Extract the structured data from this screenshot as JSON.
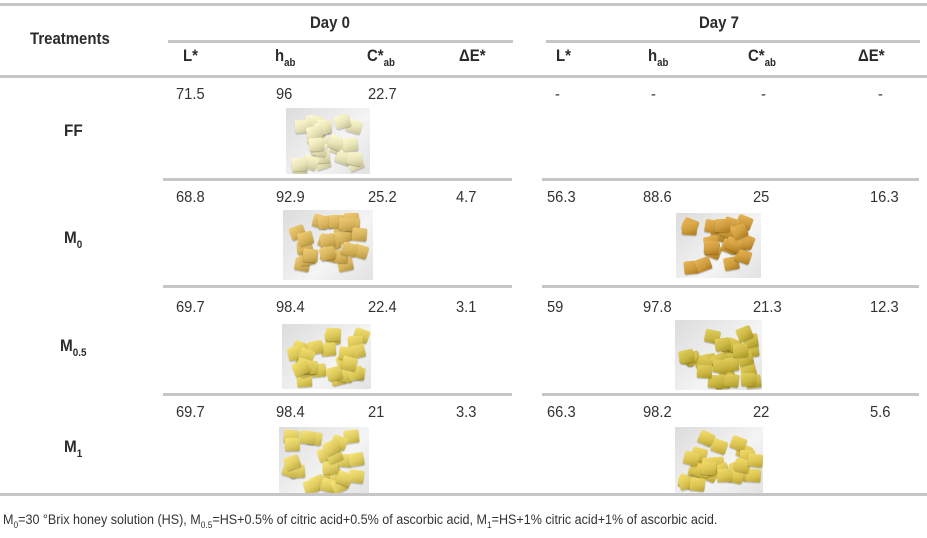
{
  "table": {
    "header": {
      "treatments": "Treatments",
      "groups": [
        {
          "label": "Day 0"
        },
        {
          "label": "Day 7"
        }
      ],
      "columns": {
        "L": {
          "base": "L*",
          "sub": ""
        },
        "h": {
          "base": "h",
          "sub": "ab"
        },
        "C": {
          "base": "C*",
          "sub": "ab"
        },
        "dE": {
          "base": "ΔE*",
          "sub": ""
        }
      }
    },
    "rows": [
      {
        "label": {
          "base": "FF",
          "sub": ""
        },
        "day0": {
          "L": "71.5",
          "h": "96",
          "C": "22.7",
          "dE": ""
        },
        "day7": {
          "L": "-",
          "h": "-",
          "C": "-",
          "dE": "-"
        },
        "photo_day0": {
          "description": "fresh-cut pale cubes",
          "color": "#e9e3b8"
        },
        "photo_day7": null
      },
      {
        "label": {
          "base": "M",
          "sub": "0"
        },
        "day0": {
          "L": "68.8",
          "h": "92.9",
          "C": "25.2",
          "dE": "4.7"
        },
        "day7": {
          "L": "56.3",
          "h": "88.6",
          "C": "25",
          "dE": "16.3"
        },
        "photo_day0": {
          "description": "honey-treated cubes day 0",
          "color": "#d8b55c"
        },
        "photo_day7": {
          "description": "honey-treated cubes day 7",
          "color": "#cf9c3e"
        }
      },
      {
        "label": {
          "base": "M",
          "sub": "0.5"
        },
        "day0": {
          "L": "69.7",
          "h": "98.4",
          "C": "22.4",
          "dE": "3.1"
        },
        "day7": {
          "L": "59",
          "h": "97.8",
          "C": "21.3",
          "dE": "12.3"
        },
        "photo_day0": {
          "description": "M0.5 cubes day 0",
          "color": "#dcc95a"
        },
        "photo_day7": {
          "description": "M0.5 cubes day 7",
          "color": "#ccb844"
        }
      },
      {
        "label": {
          "base": "M",
          "sub": "1"
        },
        "day0": {
          "L": "69.7",
          "h": "98.4",
          "C": "21",
          "dE": "3.3"
        },
        "day7": {
          "L": "66.3",
          "h": "98.2",
          "C": "22",
          "dE": "5.6"
        },
        "photo_day0": {
          "description": "M1 cubes day 0",
          "color": "#e0cd62"
        },
        "photo_day7": {
          "description": "M1 cubes day 7",
          "color": "#dcc452"
        }
      }
    ]
  },
  "footnote": {
    "parts": [
      {
        "t": "M"
      },
      {
        "s": "0"
      },
      {
        "t": "=30 °Brix honey solution (HS), M"
      },
      {
        "s": "0.5"
      },
      {
        "t": "=HS+0.5% of citric acid+0.5% of ascorbic acid, M"
      },
      {
        "s": "1"
      },
      {
        "t": "=HS+1% citric acid+1% of ascorbic acid."
      }
    ]
  }
}
